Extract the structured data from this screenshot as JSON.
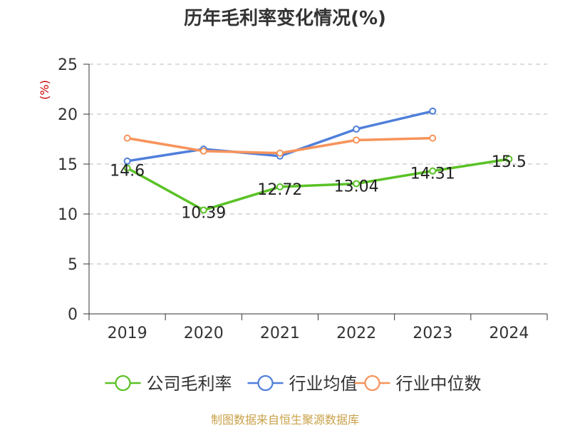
{
  "chart_data": {
    "type": "line",
    "title": "历年毛利率变化情况(%)",
    "ylabel": "(%)",
    "categories": [
      "2019",
      "2020",
      "2021",
      "2022",
      "2023",
      "2024"
    ],
    "ylim": [
      0,
      25
    ],
    "yticks": [
      "0",
      "5",
      "10",
      "15",
      "20",
      "25"
    ],
    "grid": true,
    "legend_position": "bottom",
    "series": [
      {
        "name": "公司毛利率",
        "color": "#5ac226",
        "values": [
          14.6,
          10.39,
          12.72,
          13.04,
          14.31,
          15.5
        ],
        "labels": [
          "14.6",
          "10.39",
          "12.72",
          "13.04",
          "14.31",
          "15.5"
        ]
      },
      {
        "name": "行业均值",
        "color": "#4f7fdb",
        "values": [
          15.3,
          16.5,
          15.8,
          18.5,
          20.3,
          null
        ]
      },
      {
        "name": "行业中位数",
        "color": "#f7935a",
        "values": [
          17.6,
          16.3,
          16.1,
          17.4,
          17.6,
          null
        ]
      }
    ]
  },
  "colors": {
    "ylabel": "#cc0000",
    "source": "#c9a24a",
    "axis": "#333333",
    "grid": "#c8c8c8"
  },
  "source_text": "制图数据来自恒生聚源数据库"
}
